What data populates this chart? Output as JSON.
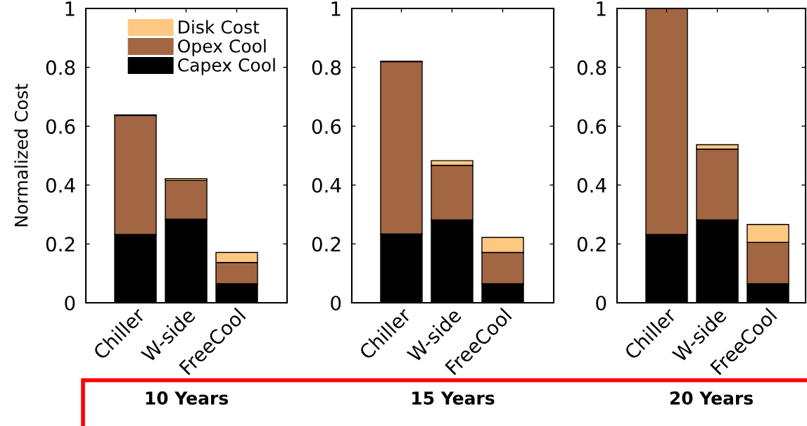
{
  "chart_data": [
    {
      "type": "bar",
      "stacked": true,
      "categories": [
        "Chiller",
        "W-side",
        "FreeCool"
      ],
      "ylabel": "Normalized Cost",
      "xlabel": "10 Years",
      "ylim": [
        0,
        1
      ],
      "yticks": [
        0,
        0.2,
        0.4,
        0.6,
        0.8,
        1
      ],
      "legend": "top right",
      "grid": false,
      "series": [
        {
          "name": "Capex Cool",
          "color": "#000000",
          "values": [
            0.232,
            0.284,
            0.065
          ]
        },
        {
          "name": "Opex Cool",
          "color": "#a36642",
          "values": [
            0.404,
            0.132,
            0.072
          ]
        },
        {
          "name": "Disk Cost",
          "color": "#ffc882",
          "values": [
            0.002,
            0.006,
            0.034
          ]
        }
      ]
    },
    {
      "type": "bar",
      "stacked": true,
      "categories": [
        "Chiller",
        "W-side",
        "FreeCool"
      ],
      "xlabel": "15 Years",
      "ylim": [
        0,
        1
      ],
      "yticks": [
        0,
        0.2,
        0.4,
        0.6,
        0.8,
        1
      ],
      "legend": false,
      "grid": false,
      "series": [
        {
          "color": "#000000",
          "values": [
            0.234,
            0.282,
            0.065
          ]
        },
        {
          "color": "#a36642",
          "values": [
            0.585,
            0.185,
            0.106
          ]
        },
        {
          "color": "#ffc882",
          "values": [
            0.002,
            0.016,
            0.051
          ]
        }
      ]
    },
    {
      "type": "bar",
      "stacked": true,
      "categories": [
        "Chiller",
        "W-side",
        "FreeCool"
      ],
      "xlabel": "20 Years",
      "ylim": [
        0,
        1
      ],
      "yticks": [
        0,
        0.2,
        0.4,
        0.6,
        0.8,
        1
      ],
      "legend": false,
      "grid": false,
      "series": [
        {
          "color": "#000000",
          "values": [
            0.232,
            0.282,
            0.065
          ]
        },
        {
          "color": "#a36642",
          "values": [
            0.768,
            0.24,
            0.14
          ]
        },
        {
          "color": "#ffc882",
          "values": [
            null,
            0.015,
            0.061
          ]
        }
      ]
    }
  ]
}
